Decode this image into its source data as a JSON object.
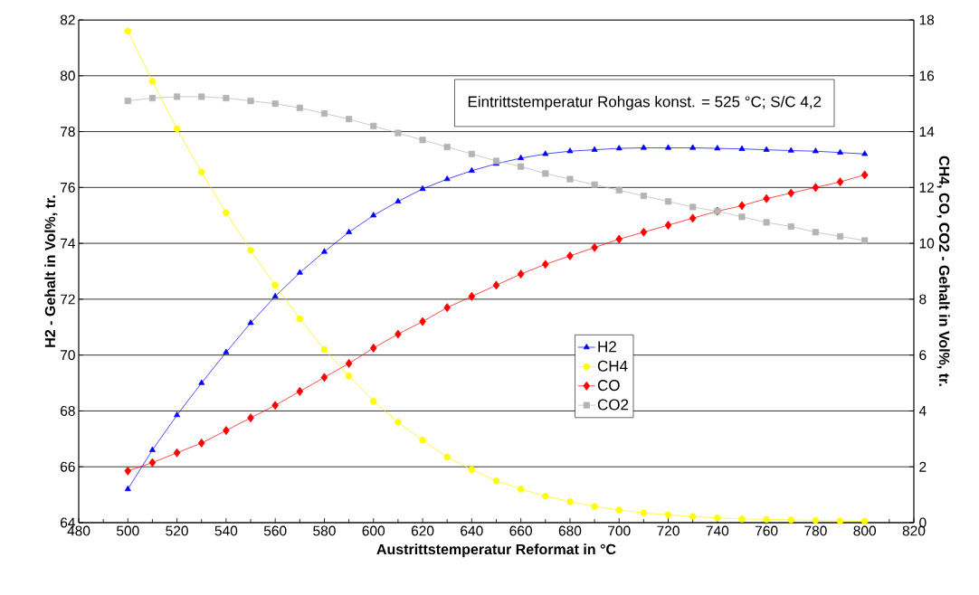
{
  "chart_data": {
    "type": "line",
    "xlabel": "Austrittstemperatur Reformat in °C",
    "ylabel": "H2 - Gehalt in Vol%, tr.",
    "y2label": "CH4, CO, CO2 - Gehalt in Vol%, tr.",
    "annotations": [
      "Eintrittstemperatur Rohgas konst. = 525 °C; S/C 4,2"
    ],
    "x": [
      500,
      510,
      520,
      530,
      540,
      550,
      560,
      570,
      580,
      590,
      600,
      610,
      620,
      630,
      640,
      650,
      660,
      670,
      680,
      690,
      700,
      710,
      720,
      730,
      740,
      750,
      760,
      770,
      780,
      790,
      800
    ],
    "series": [
      {
        "name": "H2",
        "color": "#0000ff",
        "marker": "triangle",
        "values": [
          65.2,
          66.6,
          67.85,
          69.0,
          70.1,
          71.15,
          72.1,
          72.95,
          73.7,
          74.4,
          75.0,
          75.5,
          75.95,
          76.3,
          76.6,
          76.85,
          77.05,
          77.2,
          77.3,
          77.35,
          77.4,
          77.42,
          77.42,
          77.42,
          77.4,
          77.38,
          77.35,
          77.32,
          77.3,
          77.25,
          77.2
        ]
      },
      {
        "name": "CH4",
        "color": "#ffff00",
        "marker": "circle",
        "axis": "y2",
        "values": [
          17.6,
          15.8,
          14.1,
          12.55,
          11.1,
          9.75,
          8.5,
          7.3,
          6.2,
          5.25,
          4.35,
          3.6,
          2.95,
          2.35,
          1.9,
          1.5,
          1.2,
          0.95,
          0.75,
          0.58,
          0.45,
          0.35,
          0.28,
          0.22,
          0.17,
          0.13,
          0.12,
          0.1,
          0.08,
          0.06,
          0.05
        ]
      },
      {
        "name": "CO",
        "color": "#ff0000",
        "marker": "diamond",
        "axis": "y2",
        "values": [
          1.85,
          2.15,
          2.5,
          2.85,
          3.3,
          3.75,
          4.2,
          4.7,
          5.2,
          5.7,
          6.25,
          6.75,
          7.2,
          7.7,
          8.1,
          8.5,
          8.9,
          9.25,
          9.55,
          9.85,
          10.15,
          10.4,
          10.65,
          10.9,
          11.15,
          11.35,
          11.6,
          11.8,
          12.0,
          12.2,
          12.45
        ]
      },
      {
        "name": "CO2",
        "color": "#b4b4b4",
        "marker": "square",
        "axis": "y2",
        "values": [
          15.1,
          15.2,
          15.25,
          15.25,
          15.2,
          15.1,
          15.0,
          14.85,
          14.65,
          14.45,
          14.2,
          13.95,
          13.7,
          13.45,
          13.2,
          12.95,
          12.75,
          12.5,
          12.3,
          12.1,
          11.9,
          11.7,
          11.5,
          11.3,
          11.15,
          10.95,
          10.75,
          10.6,
          10.4,
          10.25,
          10.1
        ]
      }
    ],
    "xlim": [
      480,
      820
    ],
    "xticks": [
      480,
      500,
      520,
      540,
      560,
      580,
      600,
      620,
      640,
      660,
      680,
      700,
      720,
      740,
      760,
      780,
      800,
      820
    ],
    "ylim": [
      64,
      82
    ],
    "yticks": [
      64,
      66,
      68,
      70,
      72,
      74,
      76,
      78,
      80,
      82
    ],
    "y2lim": [
      0,
      18
    ],
    "y2ticks": [
      0,
      2,
      4,
      6,
      8,
      10,
      12,
      14,
      16,
      18
    ],
    "grid": "y",
    "legend": "center"
  }
}
